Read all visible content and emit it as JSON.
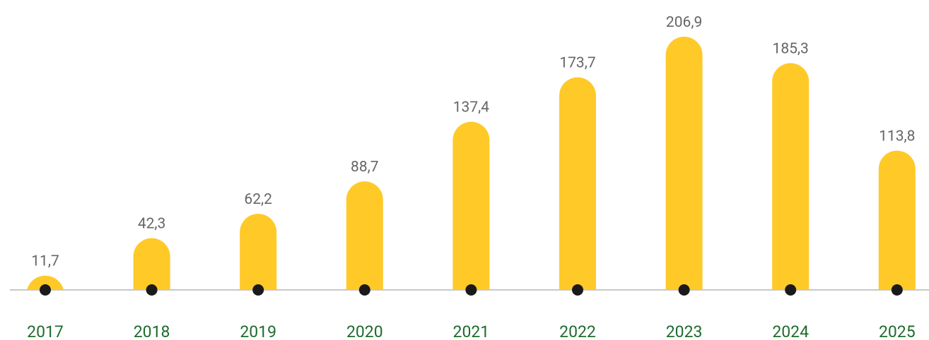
{
  "chart_data": {
    "type": "bar",
    "categories": [
      "2017",
      "2018",
      "2019",
      "2020",
      "2021",
      "2022",
      "2023",
      "2024",
      "2025"
    ],
    "values": [
      11.7,
      42.3,
      62.2,
      88.7,
      137.4,
      173.7,
      206.9,
      185.3,
      113.8
    ],
    "value_labels": [
      "11,7",
      "42,3",
      "62,2",
      "88,7",
      "137,4",
      "173,7",
      "206,9",
      "185,3",
      "113,8"
    ],
    "color": "#ffc928"
  }
}
